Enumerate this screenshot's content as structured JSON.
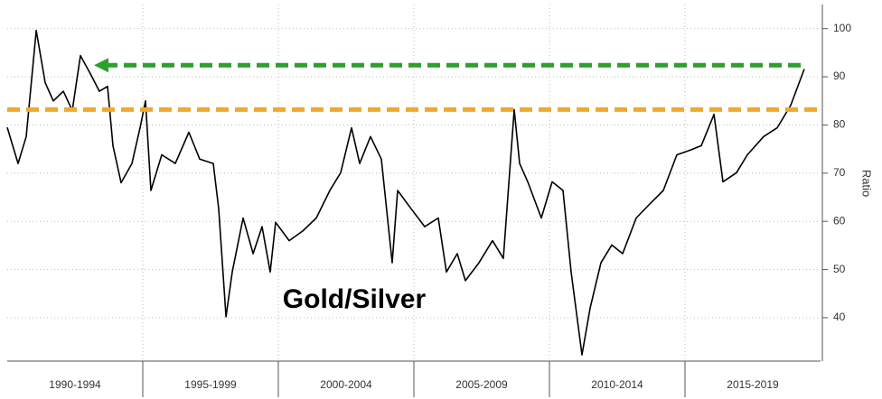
{
  "chart_data": {
    "type": "line",
    "title": "Gold/Silver",
    "y_label": "Ratio",
    "xlim": [
      1990,
      2020
    ],
    "xticks": [
      {
        "value": 1992.5,
        "label": "1990-1994"
      },
      {
        "value": 1997.5,
        "label": "1995-1999"
      },
      {
        "value": 2002.5,
        "label": "2000-2004"
      },
      {
        "value": 2007.5,
        "label": "2005-2009"
      },
      {
        "value": 2012.5,
        "label": "2010-2014"
      },
      {
        "value": 2017.5,
        "label": "2015-2019"
      }
    ],
    "ylim": [
      31,
      105
    ],
    "yticks": [
      40,
      50,
      60,
      70,
      80,
      90,
      100
    ],
    "grid": true,
    "x": [
      1990.0,
      1990.4,
      1990.7,
      1991.07,
      1991.4,
      1991.7,
      1992.07,
      1992.4,
      1992.7,
      1993.07,
      1993.4,
      1993.7,
      1993.9,
      1994.2,
      1994.6,
      1994.9,
      1995.1,
      1995.3,
      1995.7,
      1996.2,
      1996.7,
      1997.1,
      1997.6,
      1997.8,
      1998.07,
      1998.3,
      1998.7,
      1999.07,
      1999.4,
      1999.7,
      1999.9,
      2000.4,
      2000.9,
      2001.4,
      2001.9,
      2002.3,
      2002.7,
      2003.0,
      2003.4,
      2003.8,
      2004.2,
      2004.4,
      2004.9,
      2005.4,
      2005.9,
      2006.2,
      2006.6,
      2006.9,
      2007.4,
      2007.9,
      2008.3,
      2008.7,
      2008.9,
      2009.2,
      2009.7,
      2010.1,
      2010.5,
      2010.8,
      2011.2,
      2011.5,
      2011.9,
      2012.3,
      2012.7,
      2013.2,
      2013.7,
      2014.2,
      2014.7,
      2015.2,
      2015.6,
      2016.07,
      2016.4,
      2016.9,
      2017.3,
      2017.9,
      2018.4,
      2018.9,
      2019.4
    ],
    "series": [
      {
        "name": "Gold/Silver",
        "color": "#000000",
        "values": [
          79.5,
          72.0,
          77.6,
          99.6,
          88.8,
          85.0,
          87.0,
          83.0,
          94.4,
          90.6,
          87.0,
          88.0,
          75.7,
          68.0,
          72.0,
          79.4,
          85.0,
          66.4,
          73.8,
          72.0,
          78.5,
          72.9,
          72.0,
          62.6,
          40.2,
          49.5,
          60.7,
          53.3,
          58.9,
          49.5,
          59.8,
          56.0,
          58.0,
          60.7,
          66.4,
          70.1,
          79.4,
          72.0,
          77.6,
          72.9,
          51.4,
          66.4,
          62.6,
          58.9,
          60.7,
          49.5,
          53.3,
          47.7,
          51.4,
          56.0,
          52.3,
          83.2,
          72.0,
          68.2,
          60.7,
          68.2,
          66.4,
          49.5,
          32.3,
          42.0,
          51.4,
          55.1,
          53.3,
          60.7,
          63.6,
          66.4,
          73.8,
          74.8,
          75.7,
          82.2,
          68.2,
          70.1,
          73.8,
          77.6,
          79.4,
          84.1,
          91.6
        ]
      }
    ],
    "reference_lines": [
      {
        "value": 92.4,
        "x": [
          1993.2,
          2019.4
        ],
        "color": "#2ca02c",
        "arrow": true
      },
      {
        "value": 83.2,
        "x": [
          1990,
          2020
        ],
        "color": "#f0a830",
        "arrow": false
      }
    ]
  }
}
